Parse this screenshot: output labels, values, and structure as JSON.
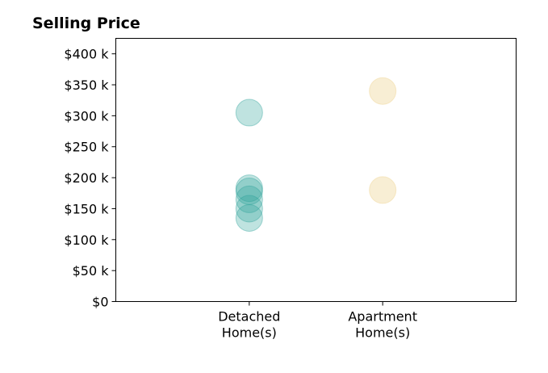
{
  "chart_data": {
    "type": "scatter",
    "title": "Selling Price",
    "xlabel": "",
    "ylabel": "",
    "categories": [
      [
        "Detached",
        "Home(s)"
      ],
      [
        "Apartment",
        "Home(s)"
      ]
    ],
    "xlim": [
      0,
      3
    ],
    "ylim": [
      0,
      425
    ],
    "yticks": [
      0,
      50,
      100,
      150,
      200,
      250,
      300,
      350,
      400
    ],
    "ytick_labels": [
      "$0",
      "$50 k",
      "$100 k",
      "$150 k",
      "$200 k",
      "$250 k",
      "$300 k",
      "$350 k",
      "$400 k"
    ],
    "grid": false,
    "series": [
      {
        "category": 0,
        "color": "#2aa198",
        "opacity": 0.3,
        "values": [
          305,
          183,
          178,
          165,
          150,
          135
        ]
      },
      {
        "category": 1,
        "color": "#f0d9a0",
        "opacity": 0.45,
        "values": [
          340,
          180
        ]
      }
    ]
  }
}
